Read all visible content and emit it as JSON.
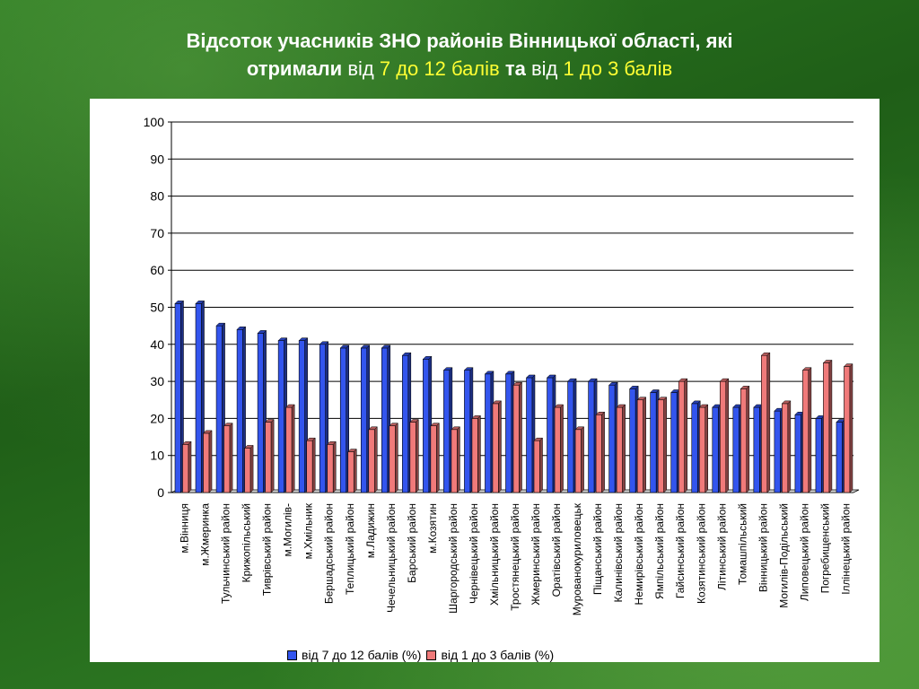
{
  "slide": {
    "title_line1": "Відсоток учасників ЗНО районів Вінницької області, які",
    "title_line2_a": "отримали",
    "title_line2_b": "від",
    "title_line2_c": "7 до 12 балів",
    "title_line2_d": "та",
    "title_line2_e": "від",
    "title_line2_f": "1 до 3 балів",
    "colors": {
      "title_white": "#ffffff",
      "title_yellow": "#ffff33",
      "background": "#2a7320"
    }
  },
  "chart_data": {
    "type": "bar",
    "title": "",
    "xlabel": "",
    "ylabel": "",
    "ylim": [
      0,
      100
    ],
    "yticks": [
      0,
      10,
      20,
      30,
      40,
      50,
      60,
      70,
      80,
      90,
      100
    ],
    "grid": true,
    "legend_position": "bottom",
    "categories": [
      "м.Вінниця",
      "м.Жмеринка",
      "Тульчинський район",
      "Крижопільський",
      "Тиврівський район",
      "м.Могилів-",
      "м.Хмільник",
      "Бершадський район",
      "Теплицький район",
      "м.Ладижин",
      "Чечельницький район",
      "Барський район",
      "м.Козятин",
      "Шаргородський район",
      "Чернівецький район",
      "Хмільницький район",
      "Тростянецький район",
      "Жмеринський район",
      "Оратівський район",
      "Мурованокуриловецьк",
      "Піщанський район",
      "Калинівський район",
      "Немирівський район",
      "Ямпільський район",
      "Гайсинський район",
      "Козятинський район",
      "Літинський район",
      "Томашпільський",
      "Вінницький район",
      "Могилів-Подільський",
      "Липовецький район",
      "Погребищенський",
      "Іллінецький район"
    ],
    "series": [
      {
        "name": "від 7 до 12 балів (%)",
        "color": "#3355ee",
        "values": [
          51,
          51,
          45,
          44,
          43,
          41,
          41,
          40,
          39,
          39,
          39,
          37,
          36,
          33,
          33,
          32,
          32,
          31,
          31,
          30,
          30,
          29,
          28,
          27,
          27,
          24,
          23,
          23,
          23,
          22,
          21,
          20,
          19
        ]
      },
      {
        "name": "від 1 до 3 балів (%)",
        "color": "#f07a7a",
        "values": [
          13,
          16,
          18,
          12,
          19,
          23,
          14,
          13,
          11,
          17,
          18,
          19,
          18,
          17,
          20,
          24,
          29,
          14,
          23,
          17,
          21,
          23,
          25,
          25,
          30,
          23,
          30,
          28,
          37,
          24,
          33,
          35,
          34
        ]
      }
    ]
  }
}
